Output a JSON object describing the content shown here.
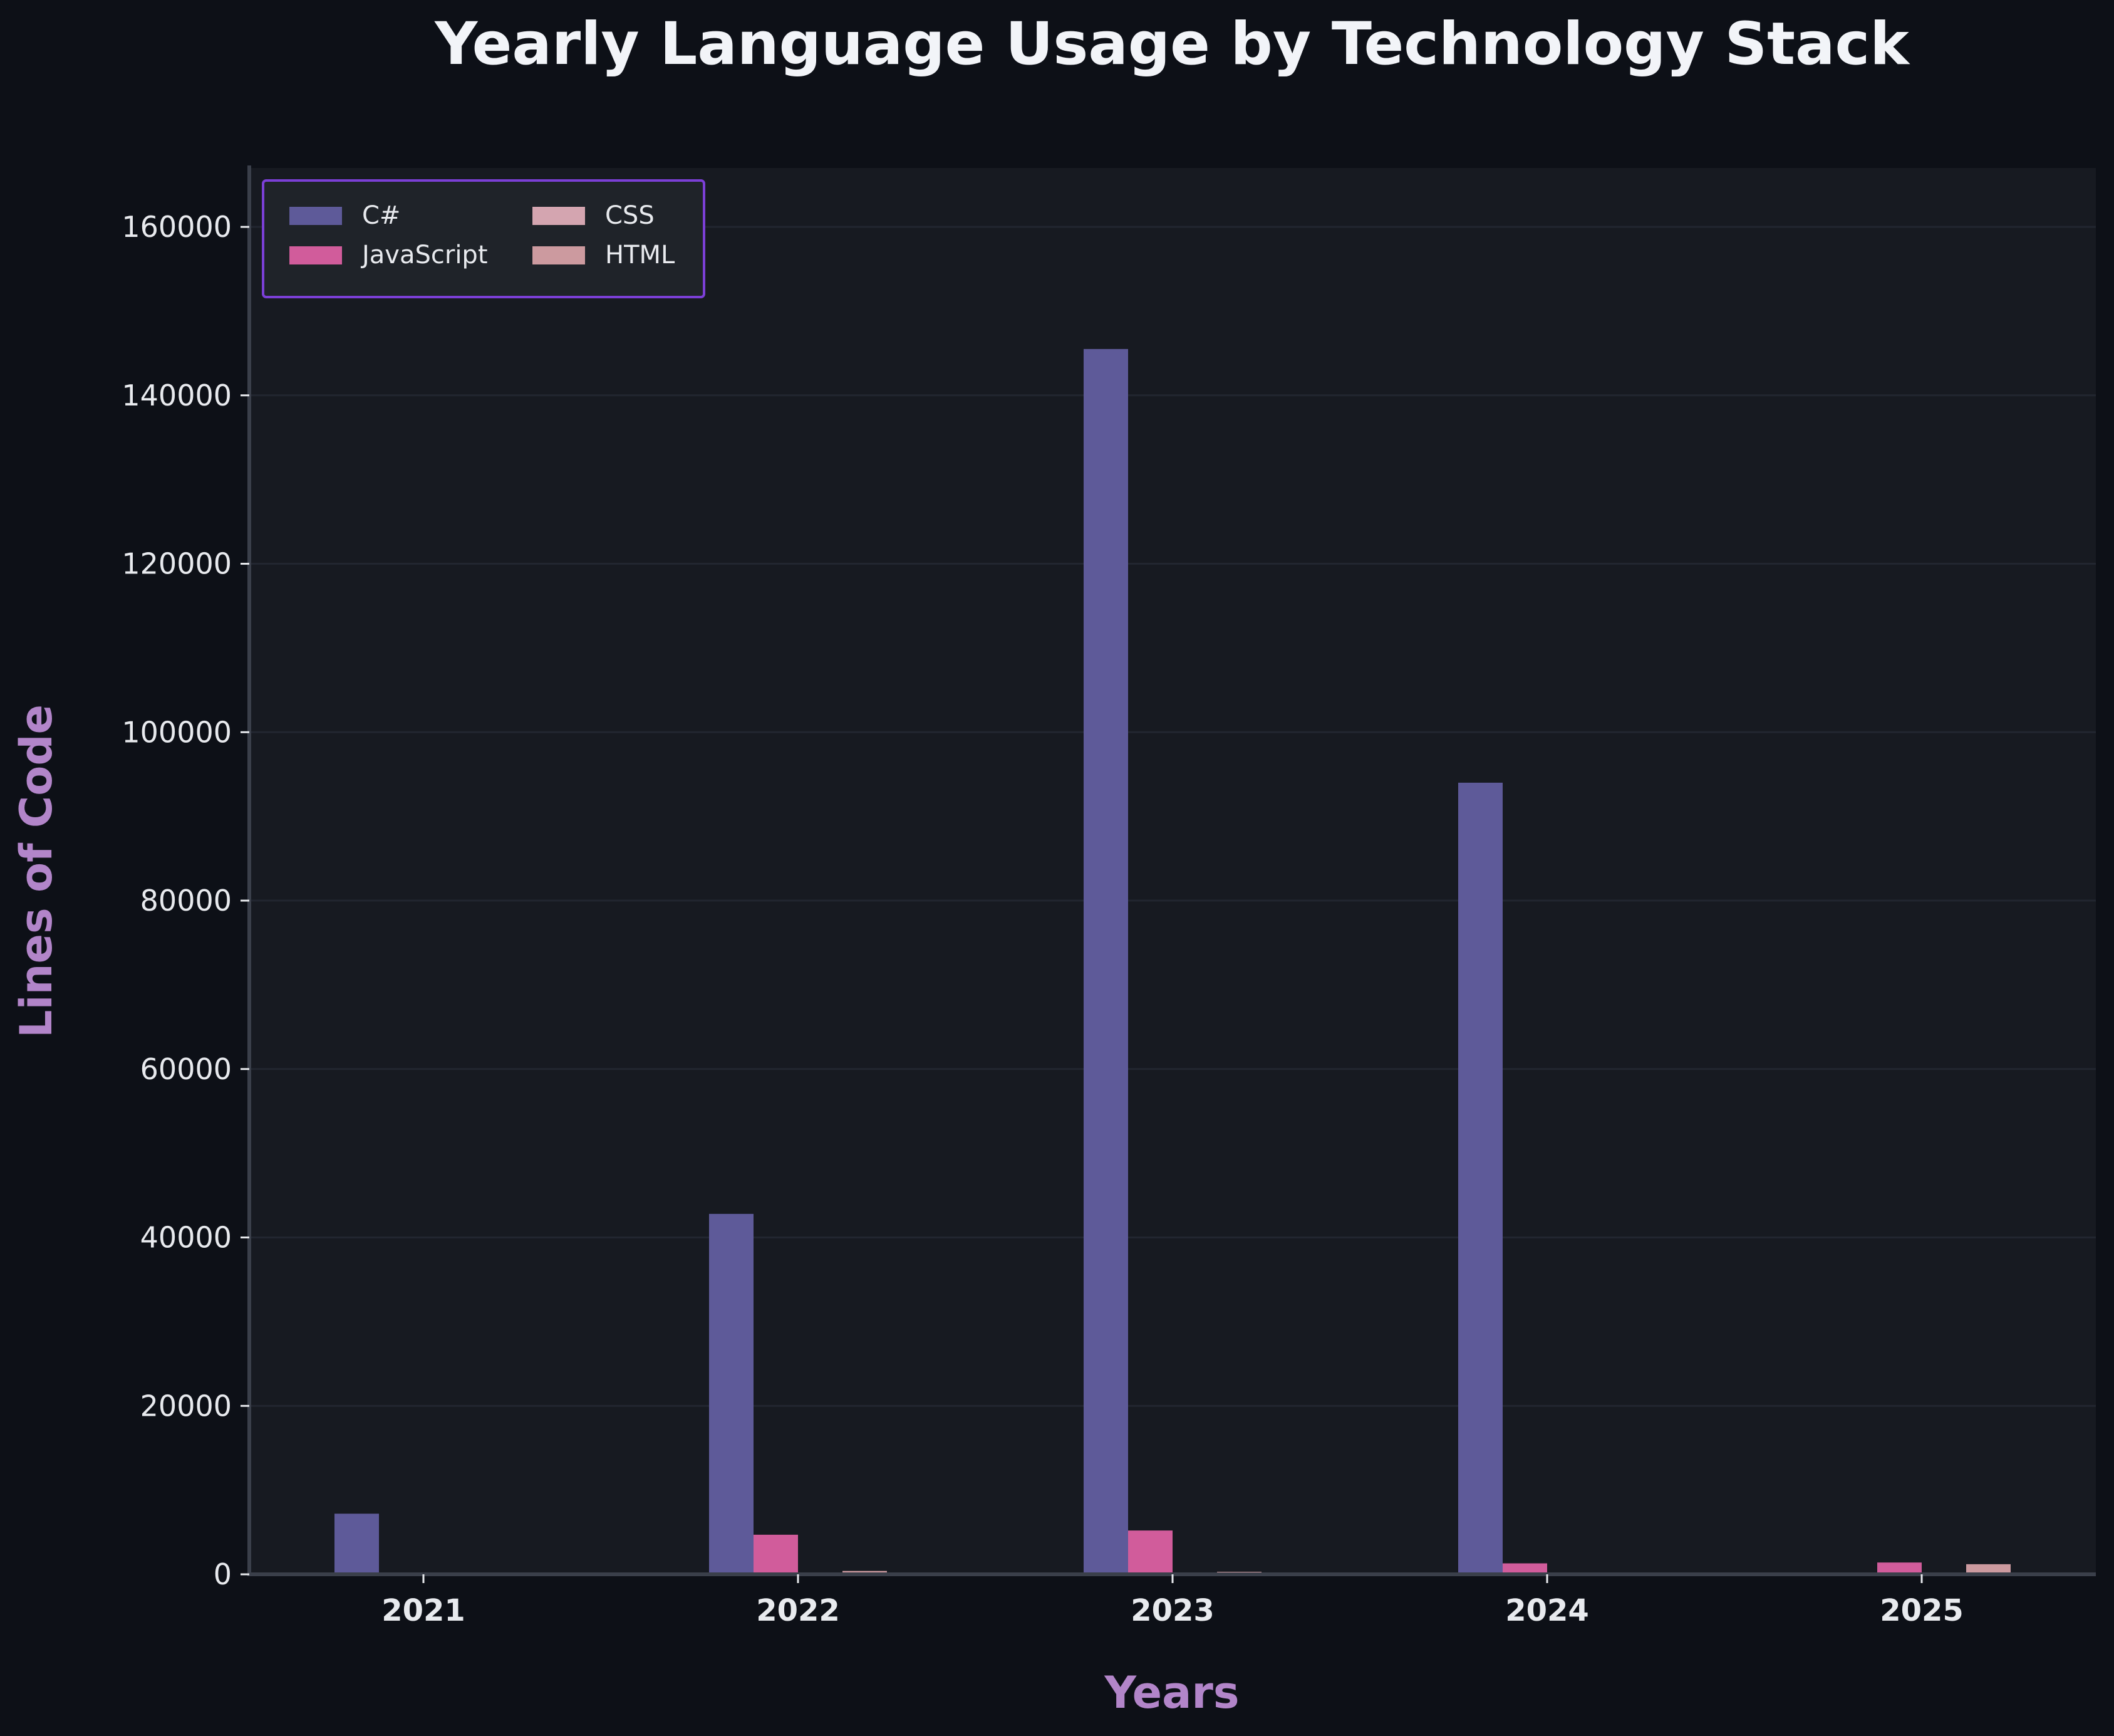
{
  "colors": {
    "page_background": "#0d1017",
    "plot_background": "#171a21",
    "title": "#f2f4f8",
    "axis_label": "#b285c9",
    "tick_text": "#e8eaee",
    "axis_line": "#3a3f4a",
    "grid": "#222630",
    "legend_border": "#7b3fd6",
    "legend_background": "#1f2329"
  },
  "chart_data": {
    "type": "bar",
    "title": "Yearly Language Usage by Technology Stack",
    "xlabel": "Years",
    "ylabel": "Lines of Code",
    "categories": [
      "2021",
      "2022",
      "2023",
      "2024",
      "2025"
    ],
    "ylim": [
      0,
      167000
    ],
    "yticks": [
      0,
      20000,
      40000,
      60000,
      80000,
      100000,
      120000,
      140000,
      160000
    ],
    "ytick_labels": [
      "0",
      "20000",
      "40000",
      "60000",
      "80000",
      "100000",
      "120000",
      "140000",
      "160000"
    ],
    "grid": true,
    "legend_position": "top-left",
    "legend_columns": 2,
    "series": [
      {
        "name": "C#",
        "color": "#5e5a99",
        "values": [
          7200,
          42800,
          145500,
          94000,
          0
        ]
      },
      {
        "name": "JavaScript",
        "color": "#d15c9b",
        "values": [
          0,
          4700,
          5200,
          1300,
          1400
        ]
      },
      {
        "name": "CSS",
        "color": "#d4a5b0",
        "values": [
          0,
          0,
          0,
          0,
          0
        ]
      },
      {
        "name": "HTML",
        "color": "#cc9a9f",
        "values": [
          0,
          400,
          300,
          0,
          1200
        ]
      }
    ]
  }
}
